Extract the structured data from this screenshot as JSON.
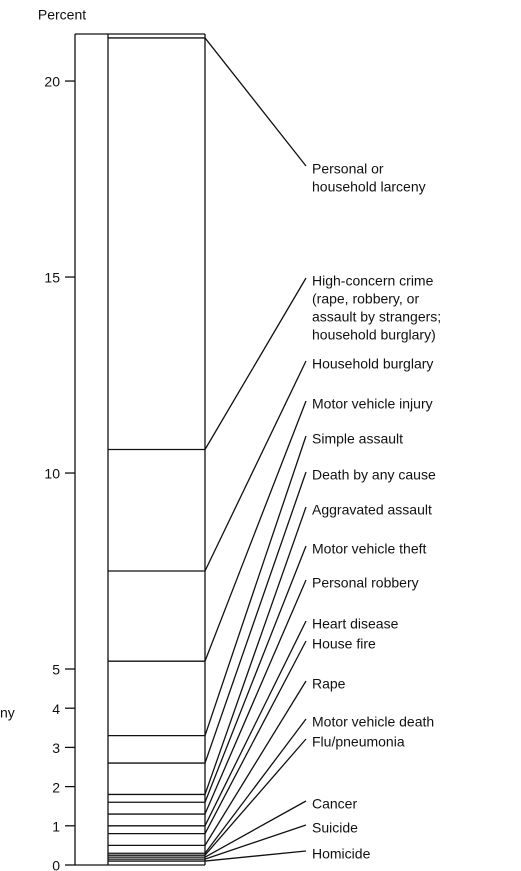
{
  "chart_data": {
    "type": "ladder",
    "y_axis_label": "Percent",
    "annotation": "ny",
    "categories": [
      [
        "Personal or",
        "household larceny"
      ],
      [
        "High-concern crime",
        "(rape, robbery, or",
        "assault by strangers;",
        "household burglary)"
      ],
      [
        "Household burglary"
      ],
      [
        "Motor vehicle injury"
      ],
      [
        "Simple assault"
      ],
      [
        "Death by any cause"
      ],
      [
        "Aggravated assault"
      ],
      [
        "Motor vehicle theft"
      ],
      [
        "Personal robbery"
      ],
      [
        "Heart disease"
      ],
      [
        "House fire"
      ],
      [
        "Rape"
      ],
      [
        "Motor vehicle death"
      ],
      [
        "Flu/pneumonia"
      ],
      [
        "Cancer"
      ],
      [
        "Suicide"
      ],
      [
        "Homicide"
      ]
    ],
    "values": [
      21.1,
      10.6,
      7.5,
      5.2,
      3.3,
      2.6,
      1.8,
      1.6,
      1.3,
      1.0,
      0.8,
      0.5,
      0.3,
      0.25,
      0.2,
      0.15,
      0.1
    ],
    "color": "#111111",
    "ylim": [
      0,
      21.2
    ],
    "yticks": [
      0,
      1,
      2,
      3,
      4,
      5,
      10,
      15,
      20
    ]
  }
}
